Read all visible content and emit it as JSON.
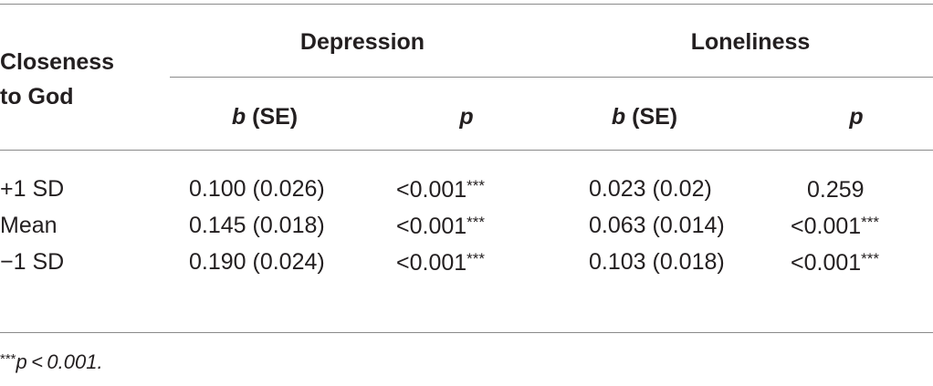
{
  "table": {
    "row_header": {
      "line1": "Closeness",
      "line2": "to God"
    },
    "groups": [
      {
        "label": "Depression"
      },
      {
        "label": "Loneliness"
      }
    ],
    "subheaders": {
      "b_symbol": "b",
      "se_text": "(SE)",
      "p_symbol": "p"
    },
    "rows": [
      {
        "label": "+1 SD",
        "dep_b": "0.100 (0.026)",
        "dep_p": "<0.001",
        "dep_sig": "***",
        "lon_b": "0.023 (0.02)",
        "lon_p": "0.259",
        "lon_sig": ""
      },
      {
        "label": "Mean",
        "dep_b": "0.145 (0.018)",
        "dep_p": "<0.001",
        "dep_sig": "***",
        "lon_b": "0.063 (0.014)",
        "lon_p": "<0.001",
        "lon_sig": "***"
      },
      {
        "label": "−1 SD",
        "dep_b": "0.190 (0.024)",
        "dep_p": "<0.001",
        "dep_sig": "***",
        "lon_b": "0.103 (0.018)",
        "lon_p": "<0.001",
        "lon_sig": "***"
      }
    ],
    "footnote": {
      "stars": "***",
      "text": "p < 0.001."
    }
  }
}
